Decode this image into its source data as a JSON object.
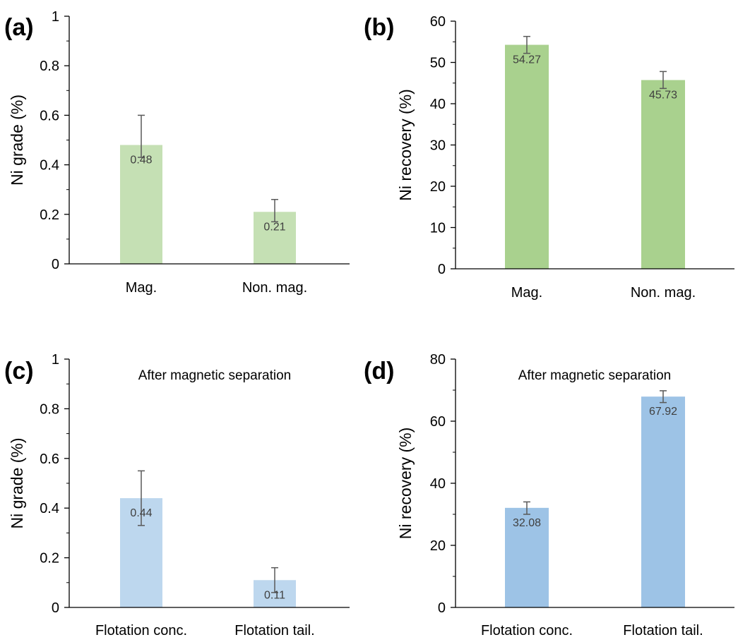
{
  "figure": {
    "description_free": true
  },
  "chart_data": [
    {
      "panel": "(a)",
      "type": "bar",
      "categories": [
        "Mag.",
        "Non. mag."
      ],
      "values": [
        0.48,
        0.21
      ],
      "labels": [
        "0.48",
        "0.21"
      ],
      "error_upper": [
        0.6,
        0.26
      ],
      "error_lower": [
        0.43,
        0.17
      ],
      "ylabel": "Ni grade (%)",
      "xlabel": "",
      "annotation": "",
      "ylim": [
        0,
        1
      ],
      "yticks": [
        0,
        0.2,
        0.4,
        0.6,
        0.8,
        1
      ],
      "ytick_labels": [
        "0",
        "0.2",
        "0.4",
        "0.6",
        "0.8",
        "1"
      ],
      "color": "#c5e0b4"
    },
    {
      "panel": "(b)",
      "type": "bar",
      "categories": [
        "Mag.",
        "Non. mag."
      ],
      "values": [
        54.27,
        45.73
      ],
      "labels": [
        "54.27",
        "45.73"
      ],
      "error_upper": [
        56.3,
        47.8
      ],
      "error_lower": [
        52.2,
        43.7
      ],
      "ylabel": "Ni recovery (%)",
      "xlabel": "",
      "annotation": "",
      "ylim": [
        0,
        60
      ],
      "yticks": [
        0,
        10,
        20,
        30,
        40,
        50,
        60
      ],
      "ytick_labels": [
        "0",
        "10",
        "20",
        "30",
        "40",
        "50",
        "60"
      ],
      "color": "#a9d18e"
    },
    {
      "panel": "(c)",
      "type": "bar",
      "categories": [
        "Flotation conc.",
        "Flotation tail."
      ],
      "values": [
        0.44,
        0.11
      ],
      "labels": [
        "0.44",
        "0.11"
      ],
      "error_upper": [
        0.55,
        0.16
      ],
      "error_lower": [
        0.33,
        0.06
      ],
      "ylabel": "Ni grade (%)",
      "xlabel": "",
      "annotation": "After magnetic separation",
      "ylim": [
        0,
        1
      ],
      "yticks": [
        0,
        0.2,
        0.4,
        0.6,
        0.8,
        1
      ],
      "ytick_labels": [
        "0",
        "0.2",
        "0.4",
        "0.6",
        "0.8",
        "1"
      ],
      "color": "#bdd7ee"
    },
    {
      "panel": "(d)",
      "type": "bar",
      "categories": [
        "Flotation conc.",
        "Flotation tail."
      ],
      "values": [
        32.08,
        67.92
      ],
      "labels": [
        "32.08",
        "67.92"
      ],
      "error_upper": [
        34.0,
        69.8
      ],
      "error_lower": [
        30.0,
        66.0
      ],
      "ylabel": "Ni recovery (%)",
      "xlabel": "",
      "annotation": "After magnetic separation",
      "ylim": [
        0,
        80
      ],
      "yticks": [
        0,
        20,
        40,
        60,
        80
      ],
      "ytick_labels": [
        "0",
        "20",
        "40",
        "60",
        "80"
      ],
      "color": "#9dc3e6"
    }
  ]
}
